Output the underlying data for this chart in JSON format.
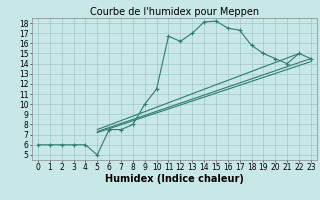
{
  "title": "Courbe de l'humidex pour Meppen",
  "xlabel": "Humidex (Indice chaleur)",
  "bg_color": "#c8e8e8",
  "grid_color": "#a0c8c8",
  "line_color": "#2e7b6e",
  "marker": "+",
  "xlim": [
    -0.5,
    23.5
  ],
  "ylim": [
    4.5,
    18.5
  ],
  "xticks": [
    0,
    1,
    2,
    3,
    4,
    5,
    6,
    7,
    8,
    9,
    10,
    11,
    12,
    13,
    14,
    15,
    16,
    17,
    18,
    19,
    20,
    21,
    22,
    23
  ],
  "yticks": [
    5,
    6,
    7,
    8,
    9,
    10,
    11,
    12,
    13,
    14,
    15,
    16,
    17,
    18
  ],
  "line1_x": [
    0,
    1,
    2,
    3,
    4,
    5,
    6,
    7,
    8,
    9,
    10,
    11,
    12,
    13,
    14,
    15,
    16,
    17,
    18,
    19,
    20,
    21,
    22,
    23
  ],
  "line1_y": [
    6,
    6,
    6,
    6,
    6,
    5,
    7.5,
    7.5,
    8,
    10,
    11.5,
    16.7,
    16.2,
    17,
    18.1,
    18.2,
    17.5,
    17.3,
    15.8,
    15,
    14.5,
    14,
    15,
    14.5
  ],
  "line2_x": [
    5,
    22
  ],
  "line2_y": [
    7.5,
    15.0
  ],
  "line3_x": [
    5,
    23
  ],
  "line3_y": [
    7.3,
    14.5
  ],
  "line4_x": [
    5,
    23
  ],
  "line4_y": [
    7.2,
    14.2
  ],
  "title_fontsize": 7,
  "tick_fontsize": 5.5,
  "label_fontsize": 7
}
